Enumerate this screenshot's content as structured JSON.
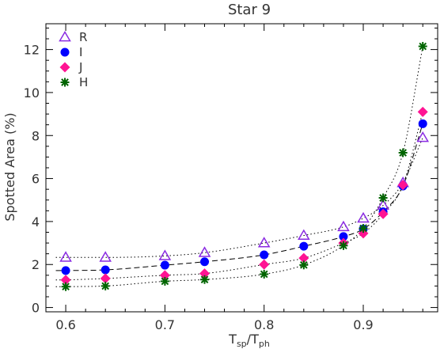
{
  "chart_data": {
    "type": "scatter",
    "title": "Star 9",
    "xlabel": {
      "base": "T",
      "sub1": "sp",
      "sep": "/",
      "base2": "T",
      "sub2": "ph"
    },
    "ylabel": "Spotted Area (%)",
    "xlim": [
      0.58,
      0.975
    ],
    "ylim": [
      -0.2,
      13.2
    ],
    "x_ticks": [
      0.6,
      0.7,
      0.8,
      0.9
    ],
    "x_tick_labels": [
      "0.6",
      "0.7",
      "0.8",
      "0.9"
    ],
    "y_ticks": [
      0,
      2,
      4,
      6,
      8,
      10,
      12
    ],
    "y_tick_labels": [
      "0",
      "2",
      "4",
      "6",
      "8",
      "10",
      "12"
    ],
    "legend_position": "top-left",
    "series": [
      {
        "name": "R",
        "marker": "triangle-open",
        "color": "#8a2be2",
        "x": [
          0.6,
          0.64,
          0.7,
          0.74,
          0.8,
          0.84,
          0.88,
          0.9,
          0.92,
          0.94,
          0.96
        ],
        "y": [
          2.33,
          2.33,
          2.4,
          2.55,
          3.0,
          3.35,
          3.75,
          4.15,
          4.75,
          5.8,
          7.9
        ],
        "fit": "dotted"
      },
      {
        "name": "I",
        "marker": "circle",
        "color": "#0000ff",
        "x": [
          0.6,
          0.64,
          0.7,
          0.74,
          0.8,
          0.84,
          0.88,
          0.9,
          0.92,
          0.94,
          0.96
        ],
        "y": [
          1.72,
          1.75,
          1.97,
          2.13,
          2.45,
          2.85,
          3.3,
          3.65,
          4.45,
          5.65,
          8.55
        ],
        "fit": "dashed"
      },
      {
        "name": "J",
        "marker": "diamond",
        "color": "#ff1493",
        "x": [
          0.6,
          0.64,
          0.7,
          0.74,
          0.8,
          0.84,
          0.88,
          0.9,
          0.92,
          0.94,
          0.96
        ],
        "y": [
          1.28,
          1.35,
          1.5,
          1.58,
          2.0,
          2.3,
          3.0,
          3.45,
          4.35,
          5.7,
          9.1
        ],
        "fit": "dotted"
      },
      {
        "name": "H",
        "marker": "asterisk",
        "color": "#006400",
        "x": [
          0.6,
          0.64,
          0.7,
          0.74,
          0.8,
          0.84,
          0.88,
          0.9,
          0.92,
          0.94,
          0.96
        ],
        "y": [
          0.97,
          1.0,
          1.22,
          1.3,
          1.55,
          1.98,
          2.88,
          3.68,
          5.1,
          7.2,
          12.15
        ],
        "fit": "dotted"
      }
    ]
  }
}
